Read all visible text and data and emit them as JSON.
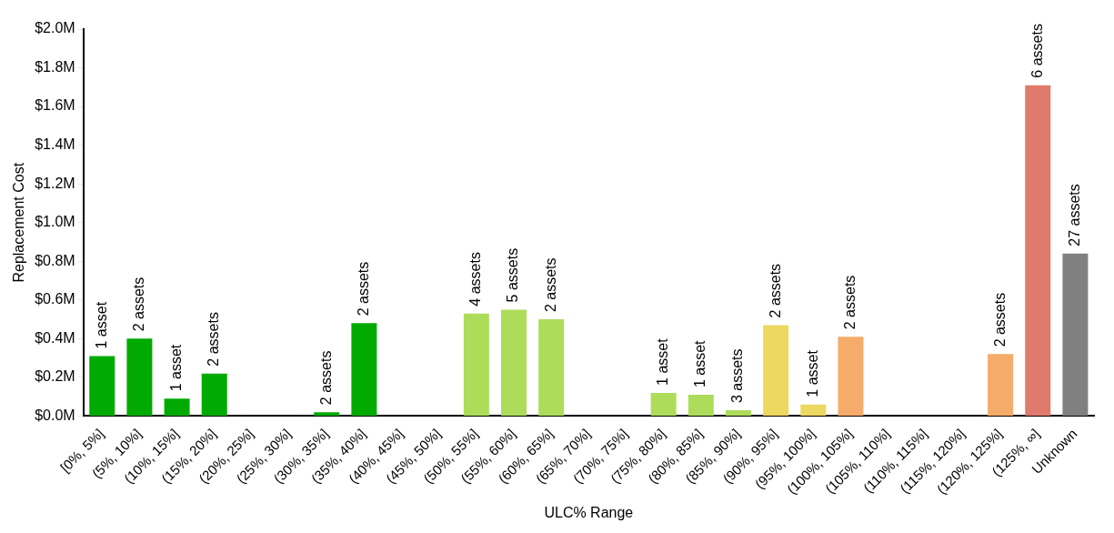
{
  "chart_data": {
    "type": "bar",
    "xlabel": "ULC% Range",
    "ylabel": "Replacement Cost",
    "categories": [
      "[0%, 5%]",
      "(5%, 10%]",
      "(10%, 15%]",
      "(15%, 20%]",
      "(20%, 25%]",
      "(25%, 30%]",
      "(30%, 35%]",
      "(35%, 40%]",
      "(40%, 45%]",
      "(45%, 50%]",
      "(50%, 55%]",
      "(55%, 60%]",
      "(60%, 65%]",
      "(65%, 70%]",
      "(70%, 75%]",
      "(75%, 80%]",
      "(80%, 85%]",
      "(85%, 90%]",
      "(90%, 95%]",
      "(95%, 100%]",
      "(100%, 105%]",
      "(105%, 110%]",
      "(110%, 115%]",
      "(115%, 120%]",
      "(120%, 125%]",
      "(125%, ∞]",
      "Unknown"
    ],
    "values": [
      0.31,
      0.4,
      0.09,
      0.22,
      null,
      null,
      0.02,
      0.48,
      null,
      null,
      0.53,
      0.55,
      0.5,
      null,
      null,
      0.12,
      0.11,
      0.03,
      0.47,
      0.06,
      0.41,
      null,
      null,
      null,
      0.32,
      1.71,
      0.84
    ],
    "annotations": [
      {
        "text": "1 asset",
        "x": "[0%, 5%]",
        "y": 0.31
      },
      {
        "text": "2 assets",
        "x": "(5%, 10%]",
        "y": 0.4
      },
      {
        "text": "1 asset",
        "x": "(10%, 15%]",
        "y": 0.09
      },
      {
        "text": "2 assets",
        "x": "(15%, 20%]",
        "y": 0.22
      },
      {
        "text": "2 assets",
        "x": "(30%, 35%]",
        "y": 0.02
      },
      {
        "text": "2 assets",
        "x": "(35%, 40%]",
        "y": 0.48
      },
      {
        "text": "4 assets",
        "x": "(50%, 55%]",
        "y": 0.53
      },
      {
        "text": "5 assets",
        "x": "(55%, 60%]",
        "y": 0.55
      },
      {
        "text": "2 assets",
        "x": "(60%, 65%]",
        "y": 0.5
      },
      {
        "text": "1 asset",
        "x": "(75%, 80%]",
        "y": 0.12
      },
      {
        "text": "1 asset",
        "x": "(80%, 85%]",
        "y": 0.11
      },
      {
        "text": "3 assets",
        "x": "(85%, 90%]",
        "y": 0.03
      },
      {
        "text": "2 assets",
        "x": "(90%, 95%]",
        "y": 0.47
      },
      {
        "text": "1 asset",
        "x": "(95%, 100%]",
        "y": 0.06
      },
      {
        "text": "2 assets",
        "x": "(100%, 105%]",
        "y": 0.41
      },
      {
        "text": "2 assets",
        "x": "(120%, 125%]",
        "y": 0.32
      },
      {
        "text": "6 assets",
        "x": "(125%, ∞]",
        "y": 1.71
      },
      {
        "text": "27 assets",
        "x": "Unknown",
        "y": 0.84
      }
    ],
    "colors": [
      "#00aa00",
      "#00aa00",
      "#00aa00",
      "#00aa00",
      "#00aa00",
      "#00aa00",
      "#00aa00",
      "#00aa00",
      "#addc5a",
      "#addc5a",
      "#addc5a",
      "#addc5a",
      "#addc5a",
      "#addc5a",
      "#addc5a",
      "#addc5a",
      "#addc5a",
      "#addc5a",
      "#edd860",
      "#edd860",
      "#f5ab69",
      "#f5ab69",
      "#f5ab69",
      "#f5ab69",
      "#f5ab69",
      "#e07a6c",
      "#808080"
    ],
    "ylim": [
      0,
      2
    ],
    "yticks": [
      {
        "value": 0,
        "label": "$0.0M"
      },
      {
        "value": 0.2,
        "label": "$0.2M"
      },
      {
        "value": 0.4,
        "label": "$0.4M"
      },
      {
        "value": 0.6,
        "label": "$0.6M"
      },
      {
        "value": 0.8,
        "label": "$0.8M"
      },
      {
        "value": 1,
        "label": "$1.0M"
      },
      {
        "value": 1.2,
        "label": "$1.2M"
      },
      {
        "value": 1.4,
        "label": "$1.4M"
      },
      {
        "value": 1.6,
        "label": "$1.6M"
      },
      {
        "value": 1.8,
        "label": "$1.8M"
      },
      {
        "value": 2,
        "label": "$2.0M"
      }
    ],
    "grid": false,
    "legend": false
  }
}
